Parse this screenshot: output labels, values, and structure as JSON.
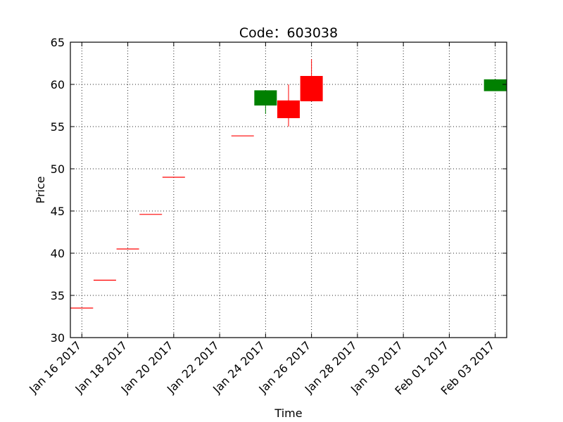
{
  "chart_data": {
    "type": "candlestick",
    "title": "Code：603038",
    "xlabel": "Time",
    "ylabel": "Price",
    "ylim": [
      30,
      65
    ],
    "xlim": [
      "2017-01-15 12:00",
      "2017-02-03 12:00"
    ],
    "y_ticks": [
      30,
      35,
      40,
      45,
      50,
      55,
      60,
      65
    ],
    "x_ticks": [
      {
        "date": "2017-01-16",
        "label": "Jan 16 2017"
      },
      {
        "date": "2017-01-18",
        "label": "Jan 18 2017"
      },
      {
        "date": "2017-01-20",
        "label": "Jan 20 2017"
      },
      {
        "date": "2017-01-22",
        "label": "Jan 22 2017"
      },
      {
        "date": "2017-01-24",
        "label": "Jan 24 2017"
      },
      {
        "date": "2017-01-26",
        "label": "Jan 26 2017"
      },
      {
        "date": "2017-01-28",
        "label": "Jan 28 2017"
      },
      {
        "date": "2017-01-30",
        "label": "Jan 30 2017"
      },
      {
        "date": "2017-02-01",
        "label": "Feb 01 2017"
      },
      {
        "date": "2017-02-03",
        "label": "Feb 03 2017"
      }
    ],
    "grid": true,
    "colors": {
      "up": "#ff0000",
      "down": "#008000"
    },
    "candles": [
      {
        "date": "2017-01-16",
        "open": 33.5,
        "high": 33.5,
        "low": 33.5,
        "close": 33.5
      },
      {
        "date": "2017-01-17",
        "open": 36.8,
        "high": 36.8,
        "low": 36.8,
        "close": 36.8
      },
      {
        "date": "2017-01-18",
        "open": 40.5,
        "high": 40.5,
        "low": 40.5,
        "close": 40.5
      },
      {
        "date": "2017-01-19",
        "open": 44.6,
        "high": 44.6,
        "low": 44.6,
        "close": 44.6
      },
      {
        "date": "2017-01-20",
        "open": 49.0,
        "high": 49.0,
        "low": 49.0,
        "close": 49.0
      },
      {
        "date": "2017-01-23",
        "open": 53.9,
        "high": 53.9,
        "low": 53.9,
        "close": 53.9
      },
      {
        "date": "2017-01-24",
        "open": 59.3,
        "high": 59.3,
        "low": 56.5,
        "close": 57.5
      },
      {
        "date": "2017-01-25",
        "open": 56.0,
        "high": 60.0,
        "low": 55.0,
        "close": 58.1
      },
      {
        "date": "2017-01-26",
        "open": 58.0,
        "high": 63.0,
        "low": 58.0,
        "close": 61.0
      },
      {
        "date": "2017-02-03",
        "open": 60.6,
        "high": 60.6,
        "low": 59.2,
        "close": 59.2
      }
    ]
  }
}
